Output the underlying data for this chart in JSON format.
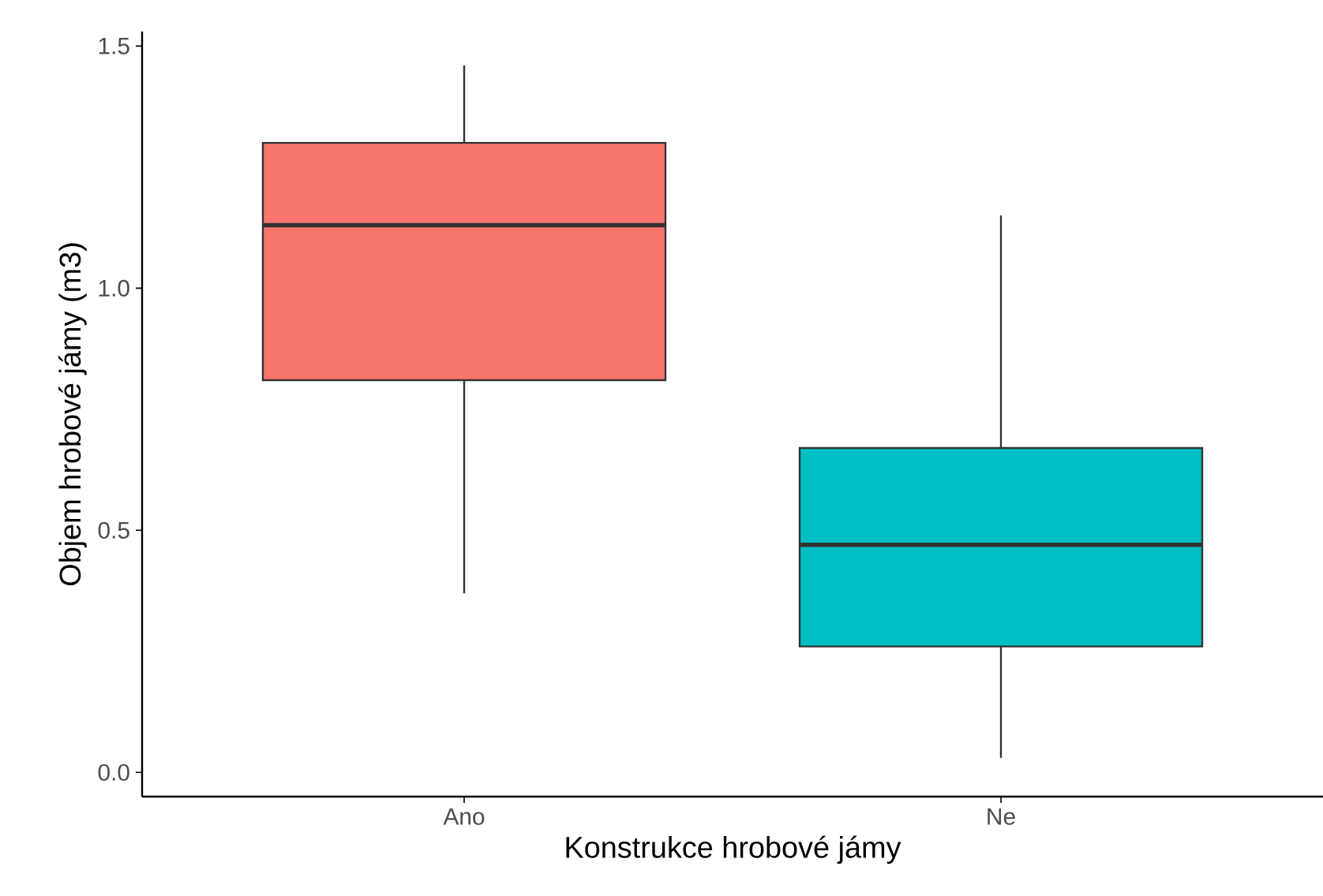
{
  "chart_data": {
    "type": "box",
    "xlabel": "Konstrukce hrobové jámy",
    "ylabel": "Objem hrobové jámy (m3)",
    "categories": [
      "Ano",
      "Ne"
    ],
    "boxes": [
      {
        "low": 0.37,
        "q1": 0.81,
        "median": 1.13,
        "q3": 1.3,
        "high": 1.46
      },
      {
        "low": 0.03,
        "q1": 0.26,
        "median": 0.47,
        "q3": 0.67,
        "high": 1.15
      }
    ],
    "colors": [
      "#f8766d",
      "#00bfc4"
    ],
    "ylim": [
      -0.05,
      1.53
    ],
    "yticks": [
      {
        "value": 0,
        "label": "0.0"
      },
      0.5,
      {
        "value": 1,
        "label": "1.0"
      },
      1.5
    ]
  }
}
